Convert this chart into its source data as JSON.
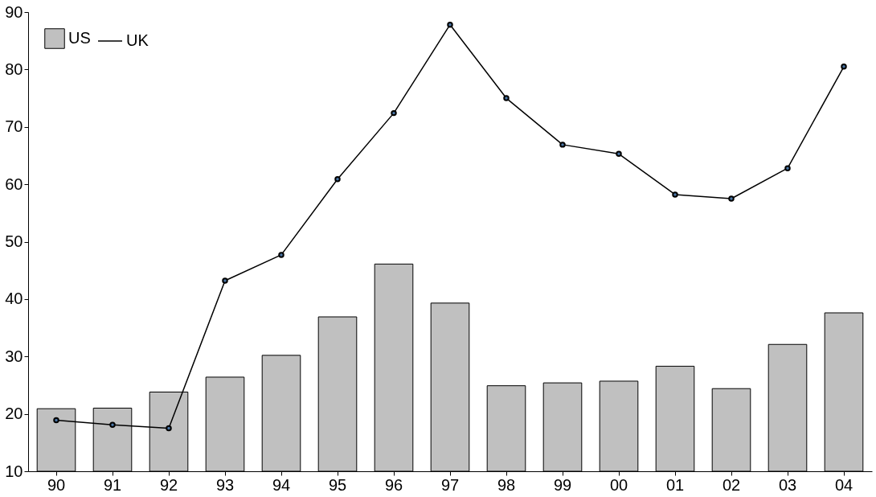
{
  "chart_data": {
    "type": "bar",
    "categories": [
      "90",
      "91",
      "92",
      "93",
      "94",
      "95",
      "96",
      "97",
      "98",
      "99",
      "00",
      "01",
      "02",
      "03",
      "04"
    ],
    "series": [
      {
        "name": "US",
        "color": "#c0c0c0",
        "values": [
          20.9,
          21.0,
          23.8,
          26.4,
          30.2,
          36.9,
          46.1,
          39.3,
          24.9,
          25.4,
          25.7,
          28.3,
          24.4,
          32.1,
          37.6
        ]
      },
      {
        "name": "UK",
        "type": "line",
        "color": "#000000",
        "marker": "circle",
        "values": [
          18.9,
          18.1,
          17.5,
          43.2,
          47.7,
          60.9,
          72.4,
          87.8,
          75.0,
          66.9,
          65.3,
          58.2,
          57.5,
          62.8,
          80.5
        ]
      }
    ],
    "ylim": [
      10,
      90
    ],
    "yticks": [
      10,
      20,
      30,
      40,
      50,
      60,
      70,
      80,
      90
    ],
    "grid": false,
    "legend": "top left"
  }
}
